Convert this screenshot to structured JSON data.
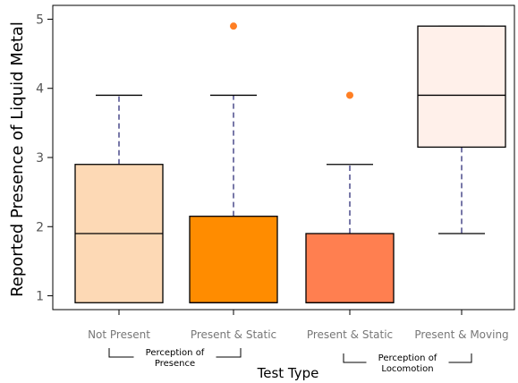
{
  "chart_data": {
    "type": "boxplot",
    "xlabel": "Test Type",
    "ylabel": "Reported Presence of Liquid Metal",
    "ylim": [
      0.8,
      5.2
    ],
    "yticks": [
      1,
      2,
      3,
      4,
      5
    ],
    "grid": false,
    "categories": [
      "Not Present",
      "Present & Static",
      "Present & Static",
      "Present & Moving"
    ],
    "boxes": [
      {
        "category": "Not Present",
        "whisker_low": 0.9,
        "q1": 0.9,
        "median": 1.9,
        "q3": 2.9,
        "whisker_high": 3.9,
        "outliers": [],
        "fill": "#fdd9b5"
      },
      {
        "category": "Present & Static",
        "whisker_low": 0.9,
        "q1": 0.9,
        "median": 0.9,
        "q3": 2.15,
        "whisker_high": 3.9,
        "outliers": [
          4.9
        ],
        "fill": "#ff8c00"
      },
      {
        "category": "Present & Static",
        "whisker_low": 0.9,
        "q1": 0.9,
        "median": 0.9,
        "q3": 1.9,
        "whisker_high": 2.9,
        "outliers": [
          3.9
        ],
        "fill": "#ff7f50"
      },
      {
        "category": "Present & Moving",
        "whisker_low": 1.9,
        "q1": 3.15,
        "median": 3.9,
        "q3": 4.9,
        "whisker_high": 4.9,
        "outliers": [],
        "fill": "#fff0ea"
      }
    ],
    "groups": [
      {
        "label_line1": "Perception of",
        "label_line2": "Presence",
        "span": [
          0,
          1
        ]
      },
      {
        "label_line1": "Perception of",
        "label_line2": "Locomotion",
        "span": [
          2,
          3
        ]
      }
    ],
    "colors": {
      "outlier": "#ff7f24",
      "whisker": "#4b4b8c",
      "box_edge": "#000000"
    }
  }
}
